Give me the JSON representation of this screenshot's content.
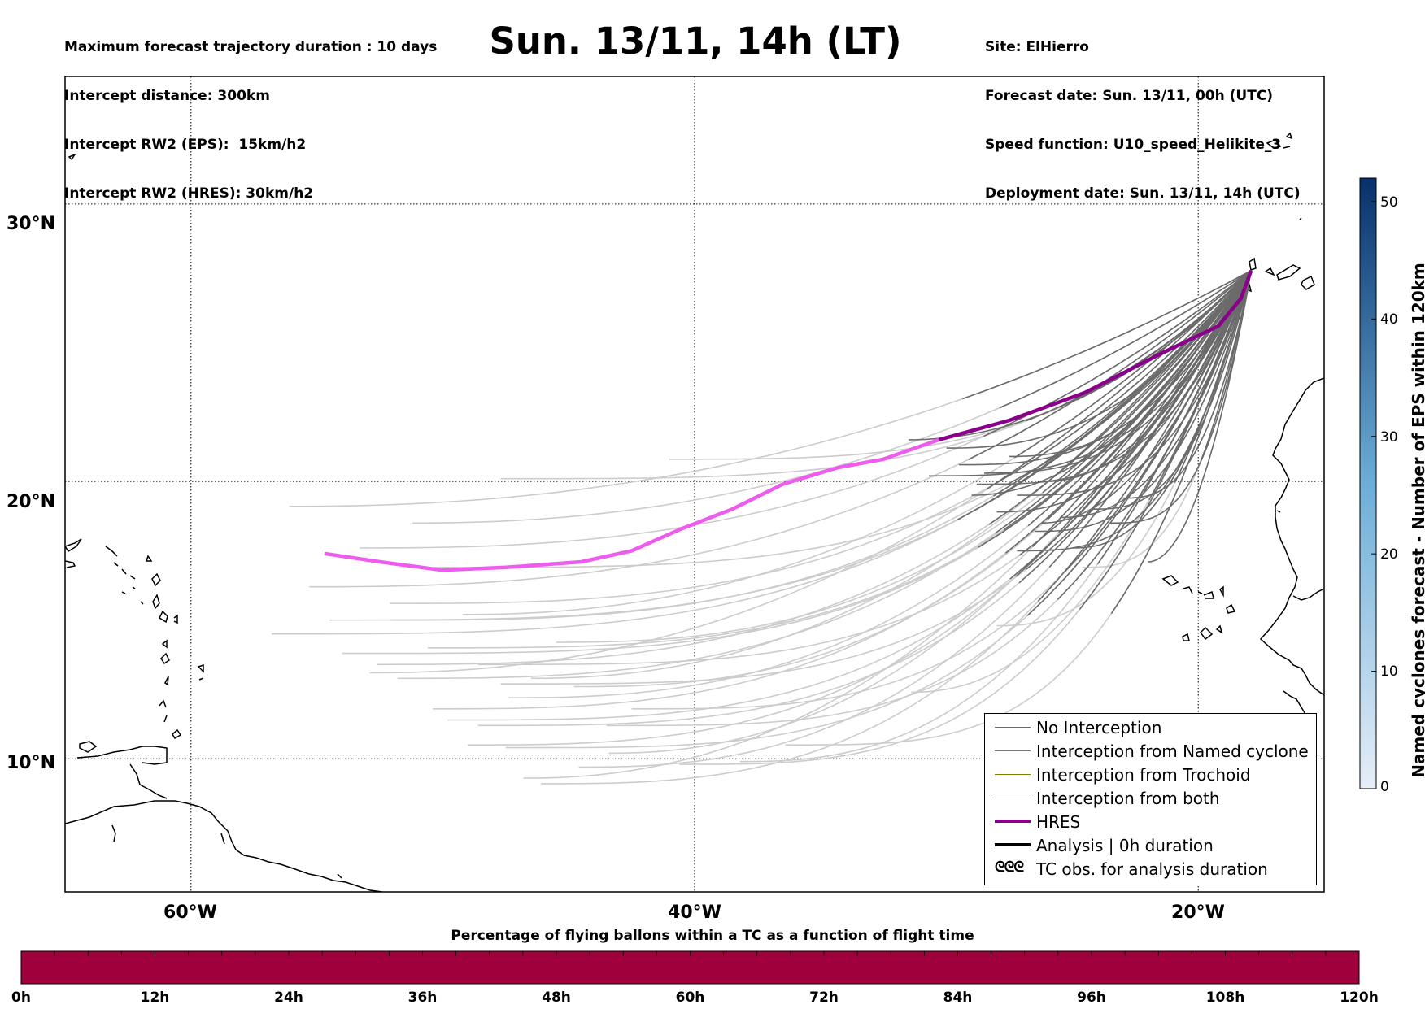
{
  "header": {
    "info_left": [
      "Maximum forecast trajectory duration : 10 days",
      "Intercept distance: 300km",
      "Intercept RW2 (EPS):  15km/h2",
      "Intercept RW2 (HRES): 30km/h2"
    ],
    "title": "Sun. 13/11, 14h (LT)",
    "info_right": [
      "Site: ElHierro",
      "Forecast date: Sun. 13/11, 00h (UTC)",
      "Speed function: U10_speed_Helikite_3",
      "Deployment date: Sun. 13/11, 14h (UTC)"
    ]
  },
  "map": {
    "lat_labels": [
      "30°N",
      "20°N",
      "10°N"
    ],
    "lon_labels": [
      "60°W",
      "40°W",
      "20°W"
    ],
    "lon_range": [
      -65,
      -15
    ],
    "lat_range": [
      5.2,
      34.6
    ],
    "gridlines_lon": [
      -60,
      -40,
      -20
    ],
    "gridlines_lat": [
      30,
      20,
      10
    ],
    "site_lonlat": [
      -17.9,
      27.6
    ],
    "colors": {
      "no_interception": "#6b6b6b",
      "no_interception_light": "#cccccc",
      "named_cyclone": "#ff4500",
      "trochoid": "#808000",
      "both": "#008000",
      "hres": "#8b008b",
      "hres_light": "#ee5cee",
      "analysis": "#000000",
      "coast": "#000000"
    }
  },
  "trajectories": {
    "hres": [
      [
        -17.9,
        27.6
      ],
      [
        -18.3,
        26.6
      ],
      [
        -19.2,
        25.6
      ],
      [
        -21.5,
        24.6
      ],
      [
        -24.5,
        23.2
      ],
      [
        -27.5,
        22.2
      ],
      [
        -30.3,
        21.5
      ],
      [
        -32.5,
        20.8
      ],
      [
        -34.3,
        20.5
      ],
      [
        -36.5,
        19.9
      ],
      [
        -38.5,
        19.0
      ],
      [
        -40.5,
        18.3
      ],
      [
        -42.5,
        17.5
      ],
      [
        -44.5,
        17.1
      ],
      [
        -47.5,
        16.9
      ],
      [
        -50.0,
        16.8
      ],
      [
        -52.5,
        17.1
      ],
      [
        -54.7,
        17.4
      ]
    ],
    "hres_dark_until_lon": -30.3,
    "ensemble_ends": [
      [
        -56.1,
        19.1
      ],
      [
        -55.3,
        16.2
      ],
      [
        -52.1,
        15.6
      ],
      [
        -56.8,
        14.5
      ],
      [
        -54.0,
        13.8
      ],
      [
        -52.9,
        13.1
      ],
      [
        -47.4,
        12.2
      ],
      [
        -50.4,
        11.8
      ],
      [
        -48.6,
        11.2
      ],
      [
        -47.5,
        10.4
      ],
      [
        -43.4,
        10.2
      ],
      [
        -44.6,
        9.7
      ],
      [
        -46.1,
        9.1
      ],
      [
        -40.6,
        9.8
      ],
      [
        -36.4,
        10.5
      ],
      [
        -31.4,
        12.4
      ],
      [
        -28.0,
        14.8
      ],
      [
        -24.6,
        16.9
      ],
      [
        -41.0,
        20.8
      ],
      [
        -47.7,
        20.1
      ],
      [
        -51.2,
        18.5
      ],
      [
        -53.3,
        17.6
      ],
      [
        -52.0,
        15.0
      ],
      [
        -50.6,
        14.0
      ],
      [
        -48.6,
        13.4
      ],
      [
        -46.5,
        12.9
      ],
      [
        -44.8,
        12.6
      ],
      [
        -51.8,
        12.9
      ],
      [
        -49.8,
        11.4
      ],
      [
        -43.5,
        11.2
      ],
      [
        -46.8,
        9.3
      ],
      [
        -38.2,
        9.9
      ],
      [
        -52.6,
        13.4
      ],
      [
        -54.5,
        15.0
      ],
      [
        -50.4,
        16.9
      ],
      [
        -49.2,
        15.2
      ],
      [
        -45.5,
        14.2
      ],
      [
        -49.0,
        10.5
      ],
      [
        -42.5,
        11.8
      ],
      [
        -47.7,
        12.7
      ]
    ],
    "ensemble_dark_ends": [
      [
        -31.5,
        21.5
      ],
      [
        -30.0,
        21.2
      ],
      [
        -28.5,
        20.3
      ],
      [
        -27.2,
        19.5
      ],
      [
        -26.2,
        18.5
      ],
      [
        -25.5,
        18.7
      ],
      [
        -26.5,
        18.2
      ],
      [
        -27.2,
        17.5
      ],
      [
        -29.0,
        19.5
      ],
      [
        -28.0,
        18.9
      ],
      [
        -24.2,
        19.0
      ],
      [
        -23.5,
        18.5
      ],
      [
        -22.0,
        17.1
      ],
      [
        -25.0,
        17.6
      ],
      [
        -29.5,
        20.6
      ],
      [
        -30.7,
        20.2
      ],
      [
        -26.0,
        20.0
      ],
      [
        -27.5,
        20.9
      ],
      [
        -23.0,
        19.4
      ],
      [
        -28.8,
        19.9
      ]
    ]
  },
  "legend": {
    "items": [
      {
        "label": "No Interception",
        "color": "#6b6b6b",
        "width": 1
      },
      {
        "label": "Interception from Named cyclone",
        "color": "#ff4500",
        "width": 1
      },
      {
        "label": "Interception from Trochoid",
        "color": "#808000",
        "width": 1
      },
      {
        "label": "Interception from both",
        "color": "#008000",
        "width": 1
      },
      {
        "label": "HRES",
        "color": "#8b008b",
        "width": 4
      },
      {
        "label": "Analysis | 0h duration",
        "color": "#000000",
        "width": 4
      },
      {
        "label": "TC obs. for analysis duration",
        "symbol": "ᘓᘓᘓ"
      }
    ]
  },
  "vertical_colorbar": {
    "title": "Named cyclones forecast - Number of EPS within 120km",
    "ticks": [
      "0",
      "10",
      "20",
      "30",
      "40",
      "50"
    ],
    "range": [
      0,
      52
    ],
    "color_low": "#e6eef8",
    "color_high": "#08306b"
  },
  "horizontal_bar": {
    "title": "Percentage of flying ballons within a TC as a function of flight time",
    "ticks": [
      "0h",
      "12h",
      "24h",
      "36h",
      "48h",
      "60h",
      "72h",
      "84h",
      "96h",
      "108h",
      "120h"
    ],
    "fill_color": "#a0003c",
    "segments": 40
  }
}
